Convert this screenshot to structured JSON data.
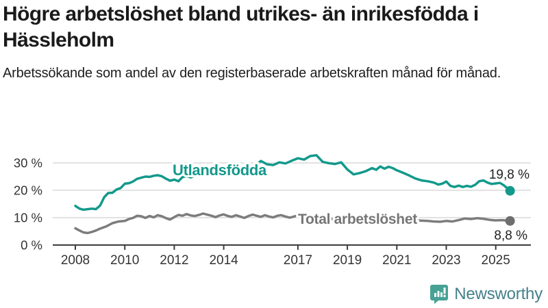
{
  "header": {
    "title": "Högre arbetslöshet bland utrikes- än inrikesfödda i Hässleholm",
    "subtitle": "Arbetssökande som andel av den registerbaserade arbetskraften månad för månad."
  },
  "footer": {
    "brand": "Newsworthy"
  },
  "colors": {
    "foreign_born_line": "#12998b",
    "total_line": "#7c7c7c",
    "total_dot": "#6e6e6e",
    "grid": "#d9d9d9",
    "axis": "#3c3c3c",
    "tick_label": "#333333",
    "end_label": "#1f1f1f",
    "series_label_total": "#767676",
    "logo_badge": "#47a295",
    "logo_text": "#44808b"
  },
  "chart_data": {
    "type": "line",
    "title": "Högre arbetslöshet bland utrikes- än inrikesfödda i Hässleholm",
    "subtitle": "Arbetssökande som andel av den registerbaserade arbetskraften månad för månad.",
    "unit": "%",
    "ylim": [
      0,
      33
    ],
    "yticks": [
      {
        "value": 0,
        "label": "0 %"
      },
      {
        "value": 10,
        "label": "10 %"
      },
      {
        "value": 20,
        "label": "20 %"
      },
      {
        "value": 30,
        "label": "30 %"
      }
    ],
    "xticks": [
      2008,
      2010,
      2012,
      2014,
      2017,
      2019,
      2021,
      2023,
      2025
    ],
    "grid": "horizontal",
    "legend_position": "inline-labels",
    "series": [
      {
        "name": "Utlandsfödda",
        "end_label": "19,8 %",
        "end_value": 19.8,
        "points": [
          [
            2008.0,
            14.3
          ],
          [
            2008.17,
            13.3
          ],
          [
            2008.33,
            12.9
          ],
          [
            2008.5,
            13.1
          ],
          [
            2008.67,
            13.3
          ],
          [
            2008.83,
            13.1
          ],
          [
            2009.0,
            14.4
          ],
          [
            2009.17,
            17.5
          ],
          [
            2009.33,
            19.0
          ],
          [
            2009.5,
            19.1
          ],
          [
            2009.67,
            20.3
          ],
          [
            2009.83,
            20.8
          ],
          [
            2010.0,
            22.4
          ],
          [
            2010.17,
            22.6
          ],
          [
            2010.33,
            23.2
          ],
          [
            2010.5,
            24.2
          ],
          [
            2010.67,
            24.6
          ],
          [
            2010.83,
            25.0
          ],
          [
            2011.0,
            24.9
          ],
          [
            2011.17,
            25.3
          ],
          [
            2011.33,
            25.5
          ],
          [
            2011.5,
            25.1
          ],
          [
            2011.67,
            24.2
          ],
          [
            2011.83,
            23.5
          ],
          [
            2012.0,
            23.9
          ],
          [
            2012.17,
            23.3
          ],
          [
            2012.33,
            24.8
          ],
          [
            2012.5,
            25.2
          ],
          [
            2012.67,
            24.7
          ],
          [
            2012.83,
            25.4
          ],
          [
            2013.0,
            25.7
          ],
          [
            2013.25,
            26.1
          ],
          [
            2013.5,
            26.6
          ],
          [
            2013.75,
            27.0
          ],
          [
            2014.0,
            27.6
          ],
          [
            2014.25,
            27.3
          ],
          [
            2014.5,
            27.9
          ],
          [
            2014.75,
            28.3
          ],
          [
            2015.0,
            28.4
          ],
          [
            2015.25,
            28.7
          ],
          [
            2015.5,
            30.7
          ],
          [
            2015.75,
            29.5
          ],
          [
            2016.0,
            29.2
          ],
          [
            2016.25,
            30.2
          ],
          [
            2016.5,
            29.8
          ],
          [
            2016.75,
            30.8
          ],
          [
            2017.0,
            31.7
          ],
          [
            2017.25,
            31.2
          ],
          [
            2017.5,
            32.5
          ],
          [
            2017.75,
            32.8
          ],
          [
            2018.0,
            30.4
          ],
          [
            2018.25,
            29.9
          ],
          [
            2018.5,
            29.6
          ],
          [
            2018.75,
            30.2
          ],
          [
            2019.0,
            27.6
          ],
          [
            2019.25,
            25.8
          ],
          [
            2019.5,
            26.3
          ],
          [
            2019.75,
            27.0
          ],
          [
            2020.0,
            28.1
          ],
          [
            2020.17,
            27.5
          ],
          [
            2020.33,
            28.7
          ],
          [
            2020.5,
            27.9
          ],
          [
            2020.67,
            28.6
          ],
          [
            2020.83,
            28.1
          ],
          [
            2021.0,
            27.3
          ],
          [
            2021.25,
            26.4
          ],
          [
            2021.5,
            25.4
          ],
          [
            2021.75,
            24.3
          ],
          [
            2022.0,
            23.6
          ],
          [
            2022.25,
            23.3
          ],
          [
            2022.5,
            22.8
          ],
          [
            2022.67,
            22.1
          ],
          [
            2022.83,
            22.4
          ],
          [
            2023.0,
            23.2
          ],
          [
            2023.17,
            21.6
          ],
          [
            2023.33,
            21.2
          ],
          [
            2023.5,
            21.7
          ],
          [
            2023.67,
            21.2
          ],
          [
            2023.83,
            21.6
          ],
          [
            2024.0,
            21.3
          ],
          [
            2024.17,
            22.0
          ],
          [
            2024.33,
            23.3
          ],
          [
            2024.5,
            23.6
          ],
          [
            2024.67,
            22.8
          ],
          [
            2024.83,
            22.3
          ],
          [
            2025.0,
            22.5
          ],
          [
            2025.17,
            22.7
          ],
          [
            2025.33,
            21.8
          ],
          [
            2025.5,
            20.5
          ],
          [
            2025.58,
            19.8
          ]
        ]
      },
      {
        "name": "Total arbetslöshet",
        "end_label": "8,8 %",
        "end_value": 8.8,
        "points": [
          [
            2008.0,
            6.1
          ],
          [
            2008.17,
            5.3
          ],
          [
            2008.33,
            4.6
          ],
          [
            2008.5,
            4.4
          ],
          [
            2008.67,
            4.8
          ],
          [
            2008.83,
            5.3
          ],
          [
            2009.0,
            6.0
          ],
          [
            2009.25,
            6.8
          ],
          [
            2009.5,
            8.0
          ],
          [
            2009.75,
            8.6
          ],
          [
            2010.0,
            8.8
          ],
          [
            2010.17,
            9.5
          ],
          [
            2010.33,
            9.9
          ],
          [
            2010.5,
            10.7
          ],
          [
            2010.67,
            10.5
          ],
          [
            2010.83,
            9.9
          ],
          [
            2011.0,
            10.6
          ],
          [
            2011.17,
            10.1
          ],
          [
            2011.33,
            10.9
          ],
          [
            2011.5,
            10.5
          ],
          [
            2011.67,
            9.8
          ],
          [
            2011.83,
            9.3
          ],
          [
            2012.0,
            10.2
          ],
          [
            2012.17,
            11.0
          ],
          [
            2012.33,
            10.7
          ],
          [
            2012.5,
            11.3
          ],
          [
            2012.67,
            10.8
          ],
          [
            2012.83,
            10.6
          ],
          [
            2013.0,
            11.0
          ],
          [
            2013.17,
            11.5
          ],
          [
            2013.33,
            11.1
          ],
          [
            2013.5,
            10.7
          ],
          [
            2013.67,
            10.2
          ],
          [
            2013.83,
            10.8
          ],
          [
            2014.0,
            11.2
          ],
          [
            2014.17,
            10.6
          ],
          [
            2014.33,
            10.3
          ],
          [
            2014.5,
            10.9
          ],
          [
            2014.67,
            10.4
          ],
          [
            2014.83,
            9.9
          ],
          [
            2015.0,
            10.6
          ],
          [
            2015.17,
            11.1
          ],
          [
            2015.33,
            10.7
          ],
          [
            2015.5,
            10.3
          ],
          [
            2015.67,
            10.9
          ],
          [
            2015.83,
            10.4
          ],
          [
            2016.0,
            10.1
          ],
          [
            2016.17,
            10.7
          ],
          [
            2016.33,
            10.9
          ],
          [
            2016.5,
            10.4
          ],
          [
            2016.67,
            10.0
          ],
          [
            2016.83,
            10.4
          ],
          [
            2017.0,
            10.8
          ],
          [
            2017.25,
            10.3
          ],
          [
            2017.5,
            9.7
          ],
          [
            2017.75,
            9.9
          ],
          [
            2018.0,
            10.1
          ],
          [
            2018.25,
            9.6
          ],
          [
            2018.5,
            9.4
          ],
          [
            2018.75,
            9.6
          ],
          [
            2019.0,
            9.3
          ],
          [
            2019.25,
            9.0
          ],
          [
            2019.5,
            9.2
          ],
          [
            2019.75,
            9.4
          ],
          [
            2020.0,
            9.6
          ],
          [
            2020.25,
            10.2
          ],
          [
            2020.5,
            10.4
          ],
          [
            2020.75,
            10.1
          ],
          [
            2021.0,
            9.9
          ],
          [
            2021.25,
            9.6
          ],
          [
            2021.5,
            9.3
          ],
          [
            2021.75,
            9.0
          ],
          [
            2022.0,
            8.9
          ],
          [
            2022.25,
            8.8
          ],
          [
            2022.5,
            8.6
          ],
          [
            2022.75,
            8.5
          ],
          [
            2023.0,
            8.8
          ],
          [
            2023.25,
            8.6
          ],
          [
            2023.5,
            9.1
          ],
          [
            2023.75,
            9.7
          ],
          [
            2024.0,
            9.5
          ],
          [
            2024.25,
            9.8
          ],
          [
            2024.5,
            9.6
          ],
          [
            2024.75,
            9.2
          ],
          [
            2025.0,
            9.0
          ],
          [
            2025.25,
            9.1
          ],
          [
            2025.5,
            8.9
          ],
          [
            2025.58,
            8.8
          ]
        ]
      }
    ]
  }
}
